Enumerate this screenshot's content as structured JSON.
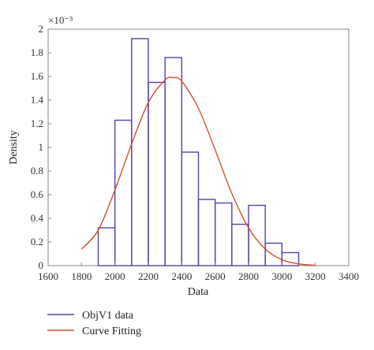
{
  "chart_data": {
    "type": "bar",
    "xlabel": "Data",
    "ylabel": "Density",
    "y_multiplier": "×10⁻³",
    "xlim": [
      1600,
      3400
    ],
    "ylim": [
      0,
      2
    ],
    "xticks": [
      1600,
      1800,
      2000,
      2200,
      2400,
      2600,
      2800,
      3000,
      3200,
      3400
    ],
    "xtick_labels": [
      "1600",
      "1800",
      "2000",
      "2200",
      "2400",
      "2600",
      "2800",
      "3000",
      "3200",
      "3400"
    ],
    "yticks": [
      0,
      0.2,
      0.4,
      0.6,
      0.8,
      1,
      1.2,
      1.4,
      1.6,
      1.8,
      2
    ],
    "ytick_labels": [
      "0",
      "0.2",
      "0.4",
      "0.6",
      "0.8",
      "1",
      "1.2",
      "1.4",
      "1.6",
      "1.8",
      "2"
    ],
    "grid": false,
    "legend_position": "bottom-left, below plot",
    "histogram": {
      "name": "ObjV1 data",
      "color": "#5a3fa8",
      "bin_edges": [
        1900,
        2000,
        2100,
        2200,
        2300,
        2400,
        2500,
        2600,
        2700,
        2800,
        2900,
        3000,
        3100
      ],
      "values": [
        0.32,
        1.23,
        1.92,
        1.55,
        1.76,
        0.96,
        0.56,
        0.53,
        0.35,
        0.51,
        0.19,
        0.11
      ]
    },
    "curve": {
      "name": "Curve Fitting",
      "color": "#d4502a",
      "x": [
        1800,
        1900,
        2000,
        2100,
        2200,
        2300,
        2350,
        2400,
        2500,
        2600,
        2700,
        2800,
        2900,
        3000,
        3100,
        3200
      ],
      "y": [
        0.14,
        0.3,
        0.64,
        1.03,
        1.38,
        1.57,
        1.59,
        1.56,
        1.33,
        0.98,
        0.61,
        0.32,
        0.14,
        0.05,
        0.015,
        0.003
      ]
    }
  }
}
